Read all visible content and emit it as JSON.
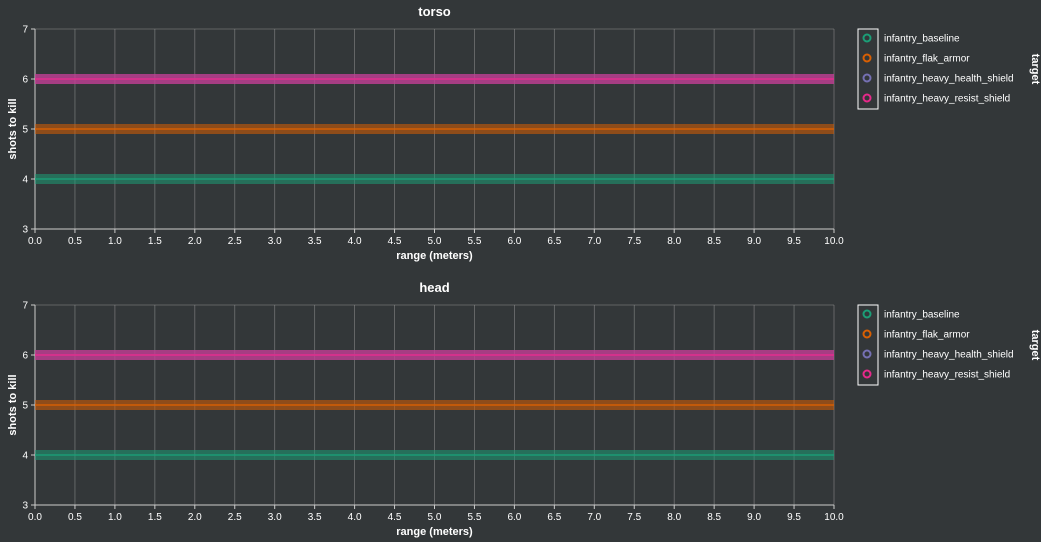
{
  "chart_data": [
    {
      "type": "line",
      "title": "torso",
      "xlabel": "range (meters)",
      "ylabel": "shots to kill",
      "xlim": [
        0,
        10
      ],
      "ylim": [
        3,
        7
      ],
      "x_ticks": [
        "0.0",
        "0.5",
        "1.0",
        "1.5",
        "2.0",
        "2.5",
        "3.0",
        "3.5",
        "4.0",
        "4.5",
        "5.0",
        "5.5",
        "6.0",
        "6.5",
        "7.0",
        "7.5",
        "8.0",
        "8.5",
        "9.0",
        "9.5",
        "10.0"
      ],
      "y_ticks": [
        "3",
        "4",
        "5",
        "6",
        "7"
      ],
      "grid": true,
      "legend": {
        "title": "target",
        "position": "right",
        "entries": [
          "infantry_baseline",
          "infantry_flak_armor",
          "infantry_heavy_health_shield",
          "infantry_heavy_resist_shield"
        ]
      },
      "series": [
        {
          "name": "infantry_baseline",
          "color": "#1b9e77",
          "x": [
            0,
            10
          ],
          "y": [
            4,
            4
          ]
        },
        {
          "name": "infantry_flak_armor",
          "color": "#d95f02",
          "x": [
            0,
            10
          ],
          "y": [
            5,
            5
          ]
        },
        {
          "name": "infantry_heavy_health_shield",
          "color": "#7570b3",
          "x": [
            0,
            10
          ],
          "y": [
            6,
            6
          ]
        },
        {
          "name": "infantry_heavy_resist_shield",
          "color": "#e7298a",
          "x": [
            0,
            10
          ],
          "y": [
            6,
            6
          ]
        }
      ]
    },
    {
      "type": "line",
      "title": "head",
      "xlabel": "range (meters)",
      "ylabel": "shots to kill",
      "xlim": [
        0,
        10
      ],
      "ylim": [
        3,
        7
      ],
      "x_ticks": [
        "0.0",
        "0.5",
        "1.0",
        "1.5",
        "2.0",
        "2.5",
        "3.0",
        "3.5",
        "4.0",
        "4.5",
        "5.0",
        "5.5",
        "6.0",
        "6.5",
        "7.0",
        "7.5",
        "8.0",
        "8.5",
        "9.0",
        "9.5",
        "10.0"
      ],
      "y_ticks": [
        "3",
        "4",
        "5",
        "6",
        "7"
      ],
      "grid": true,
      "legend": {
        "title": "target",
        "position": "right",
        "entries": [
          "infantry_baseline",
          "infantry_flak_armor",
          "infantry_heavy_health_shield",
          "infantry_heavy_resist_shield"
        ]
      },
      "series": [
        {
          "name": "infantry_baseline",
          "color": "#1b9e77",
          "x": [
            0,
            10
          ],
          "y": [
            4,
            4
          ]
        },
        {
          "name": "infantry_flak_armor",
          "color": "#d95f02",
          "x": [
            0,
            10
          ],
          "y": [
            5,
            5
          ]
        },
        {
          "name": "infantry_heavy_health_shield",
          "color": "#7570b3",
          "x": [
            0,
            10
          ],
          "y": [
            6,
            6
          ]
        },
        {
          "name": "infantry_heavy_resist_shield",
          "color": "#e7298a",
          "x": [
            0,
            10
          ],
          "y": [
            6,
            6
          ]
        }
      ]
    }
  ]
}
